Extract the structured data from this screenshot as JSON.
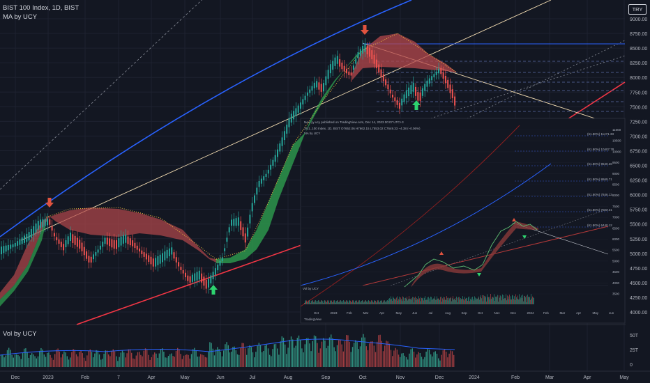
{
  "header": {
    "title": "BIST 100 Index, 1D, BIST",
    "indicator": "MA by UCY",
    "currency": "TRY",
    "volume_indicator": "Vol by UCY"
  },
  "inset": {
    "published": "Nevi yy  ucy  published on TradingView.com, Dec 14, 2023 00:07 UTC+3",
    "ohlc": "XU1..100 Index, 1D, BIST  O7652.06  H7662.15  L7553.02  C7649.33  −4.38 (−0.06%)",
    "ma_line": "MA by UCY",
    "vol_label": "Vol by UCY",
    "brand": "TradingView",
    "fib_levels": [
      "(61.80%) 11471.33",
      "(61.80%) 10407.78",
      "(61.80%) 9540.26",
      "(61.80%) 8669.71",
      "(61.80%) 7846.13",
      "(61.80%) 7022.31",
      "(61.80%) 6440.12"
    ],
    "y_ticks": [
      "11000",
      "10500",
      "10000",
      "9500",
      "9000",
      "8500",
      "8000",
      "7500",
      "7000",
      "6500",
      "6000",
      "5500",
      "5000",
      "4500",
      "4000",
      "3500"
    ],
    "x_ticks": [
      "Oct",
      "2023",
      "Feb",
      "Mar",
      "Apr",
      "May",
      "Jun",
      "Jul",
      "Aug",
      "Sep",
      "Oct",
      "Nov",
      "Dec",
      "2024",
      "Feb",
      "Mar",
      "Apr",
      "May",
      "Jun"
    ]
  },
  "chart_data": {
    "type": "candlestick",
    "title": "BIST 100 Index, 1D, BIST",
    "x_ticks": [
      "Dec",
      "2023",
      "Feb",
      "7",
      "Apr",
      "May",
      "Jun",
      "Jul",
      "Aug",
      "Sep",
      "Oct",
      "Nov",
      "Dec",
      "2024",
      "Feb",
      "Mar",
      "Apr",
      "May"
    ],
    "y_ticks": [
      9000,
      8750,
      8500,
      8250,
      8000,
      7750,
      7500,
      7250,
      7000,
      6750,
      6500,
      6250,
      6000,
      5750,
      5500,
      5250,
      5000,
      4750,
      4500,
      4250,
      4000
    ],
    "ylim": [
      3950,
      9250
    ],
    "volume_ticks": [
      "50T",
      "25T",
      "0"
    ],
    "price_path_months": [
      "Dec",
      "Jan",
      "Feb",
      "Mar",
      "Apr",
      "May",
      "Jun",
      "Jul",
      "Aug",
      "Sep",
      "Oct",
      "Nov",
      "Dec"
    ],
    "price_path_closes": [
      5100,
      5500,
      5050,
      5000,
      4900,
      4550,
      5200,
      6300,
      7750,
      8150,
      8450,
      7750,
      7600
    ],
    "markers": [
      {
        "type": "sell",
        "month": "Jan"
      },
      {
        "type": "buy",
        "month": "May"
      },
      {
        "type": "sell",
        "month": "Oct"
      },
      {
        "type": "buy",
        "month": "Nov"
      }
    ],
    "colors": {
      "up": "#26a69a",
      "down": "#ef5350",
      "ma_fill_up": "#2e9e4f",
      "ma_fill_down": "#b5484c",
      "upper_channel": "#2962ff",
      "lower_channel": "#f23645",
      "trend": "#f5deb3",
      "buy": "#2dd36f",
      "sell": "#e0533f"
    }
  }
}
